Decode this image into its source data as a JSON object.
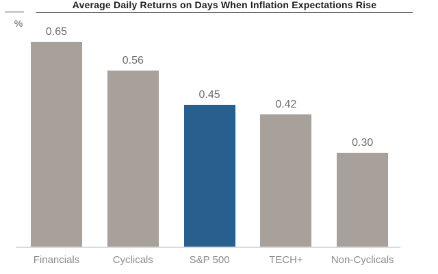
{
  "title": "Average Daily Returns on Days When Inflation Expectations Rise",
  "unit_label": "%",
  "colors": {
    "bar_default": "#a8a09a",
    "bar_highlight": "#27608f",
    "title_text": "#1d1d1f",
    "title_rule": "#3f3f41",
    "value_text": "#6b6c6e",
    "category_text": "#8a8b8e",
    "baseline": "#dbdbdb",
    "background": "#ffffff"
  },
  "chart_data": {
    "type": "bar",
    "title": "Average Daily Returns on Days When Inflation Expectations Rise",
    "categories": [
      "Financials",
      "Cyclicals",
      "S&P 500",
      "TECH+",
      "Non-Cyclicals"
    ],
    "values": [
      0.65,
      0.56,
      0.45,
      0.42,
      0.3
    ],
    "value_labels": [
      "0.65",
      "0.56",
      "0.45",
      "0.42",
      "0.30"
    ],
    "highlight_index": 2,
    "highlight_category": "S&P 500",
    "xlabel": "",
    "ylabel": "%",
    "ylim": [
      0,
      0.78
    ],
    "grid": false,
    "legend": false,
    "value_labels_position": "above-bars"
  }
}
